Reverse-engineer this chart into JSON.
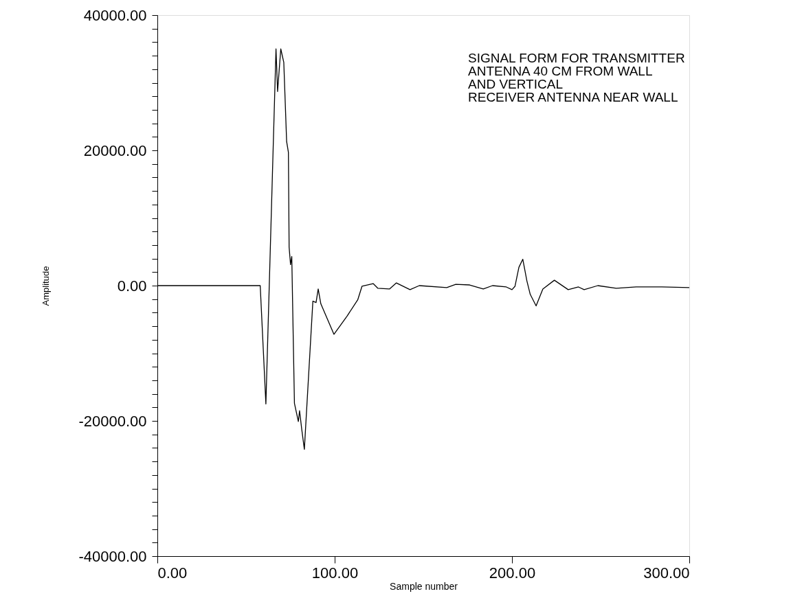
{
  "chart_data": {
    "type": "line",
    "xlabel": "Sample number",
    "ylabel": "Amplitude",
    "annotations": [
      "SIGNAL FORM FOR TRANSMITTER\nANTENNA 40 CM FROM WALL\nAND VERTICAL\nRECEIVER ANTENNA NEAR WALL"
    ],
    "xlim": [
      0,
      300
    ],
    "ylim": [
      -40000,
      40000
    ],
    "xticks": [
      {
        "value": 0,
        "label": "0.00"
      },
      {
        "value": 100,
        "label": "100.00"
      },
      {
        "value": 200,
        "label": "200.00"
      },
      {
        "value": 300,
        "label": "300.00"
      }
    ],
    "yticks": [
      {
        "value": -40000,
        "label": "-40000.00"
      },
      {
        "value": -38000,
        "label": null
      },
      {
        "value": -36000,
        "label": null
      },
      {
        "value": -34000,
        "label": null
      },
      {
        "value": -32000,
        "label": null
      },
      {
        "value": -30000,
        "label": null
      },
      {
        "value": -28000,
        "label": null
      },
      {
        "value": -26000,
        "label": null
      },
      {
        "value": -24000,
        "label": null
      },
      {
        "value": -22000,
        "label": null
      },
      {
        "value": -20000,
        "label": "-20000.00"
      },
      {
        "value": -18000,
        "label": null
      },
      {
        "value": -16000,
        "label": null
      },
      {
        "value": -14000,
        "label": null
      },
      {
        "value": -12000,
        "label": null
      },
      {
        "value": -10000,
        "label": null
      },
      {
        "value": -8000,
        "label": null
      },
      {
        "value": -6000,
        "label": null
      },
      {
        "value": -4000,
        "label": null
      },
      {
        "value": -2000,
        "label": null
      },
      {
        "value": 0,
        "label": "0.00"
      },
      {
        "value": 2000,
        "label": null
      },
      {
        "value": 4000,
        "label": null
      },
      {
        "value": 6000,
        "label": null
      },
      {
        "value": 8000,
        "label": null
      },
      {
        "value": 10000,
        "label": null
      },
      {
        "value": 12000,
        "label": null
      },
      {
        "value": 14000,
        "label": null
      },
      {
        "value": 16000,
        "label": null
      },
      {
        "value": 18000,
        "label": null
      },
      {
        "value": 20000,
        "label": "20000.00"
      },
      {
        "value": 22000,
        "label": null
      },
      {
        "value": 24000,
        "label": null
      },
      {
        "value": 26000,
        "label": null
      },
      {
        "value": 28000,
        "label": null
      },
      {
        "value": 30000,
        "label": null
      },
      {
        "value": 32000,
        "label": null
      },
      {
        "value": 34000,
        "label": null
      },
      {
        "value": 36000,
        "label": null
      },
      {
        "value": 38000,
        "label": null
      },
      {
        "value": 40000,
        "label": "40000.00"
      }
    ],
    "grid": false,
    "marker": "none",
    "line_style": "solid",
    "series": [
      {
        "color": "#000000",
        "x": [
          0,
          20,
          40,
          58,
          61.2,
          66.9,
          67.8,
          69.6,
          71.3,
          72.9,
          73.9,
          74.3,
          75.1,
          75.8,
          77.3,
          79.5,
          80.2,
          81.4,
          82.9,
          87.7,
          89.5,
          90.7,
          92.2,
          99.6,
          107,
          113,
          115.4,
          121.7,
          124.4,
          130.9,
          134.8,
          142.5,
          147.7,
          163.2,
          168.3,
          176.1,
          183.8,
          189,
          196.8,
          200,
          201.7,
          203.9,
          206.1,
          208.4,
          210.3,
          213.6,
          217.4,
          223.9,
          231.7,
          237.5,
          240.7,
          248.4,
          258.8,
          270,
          284.5,
          300
        ],
        "values": [
          0,
          0,
          0,
          0,
          -17500,
          35000,
          28700,
          35000,
          33000,
          21300,
          19700,
          5700,
          3100,
          4300,
          -17400,
          -20100,
          -18500,
          -21200,
          -24200,
          -2300,
          -2500,
          -500,
          -2700,
          -7200,
          -4500,
          -2100,
          -100,
          300,
          -400,
          -500,
          400,
          -600,
          0,
          -300,
          200,
          100,
          -500,
          0,
          -200,
          -600,
          -100,
          2700,
          3900,
          700,
          -1300,
          -3000,
          -500,
          800,
          -600,
          -200,
          -600,
          0,
          -400,
          -200,
          -200,
          -300
        ]
      }
    ]
  }
}
